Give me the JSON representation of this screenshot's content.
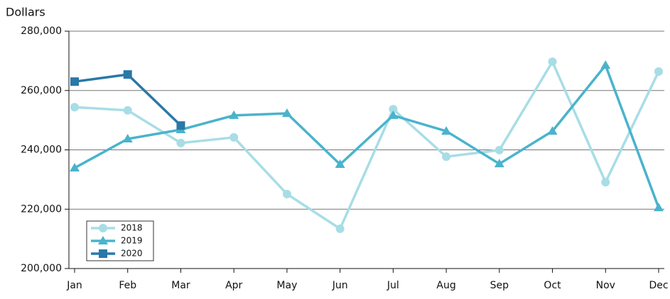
{
  "chart_data": {
    "type": "line",
    "y_label": "Dollars",
    "categories": [
      "Jan",
      "Feb",
      "Mar",
      "Apr",
      "May",
      "Jun",
      "Jul",
      "Aug",
      "Sep",
      "Oct",
      "Nov",
      "Dec"
    ],
    "series": [
      {
        "name": "2018",
        "color": "#a8dde6",
        "marker": "circle",
        "values": [
          254400,
          253300,
          242300,
          244200,
          225100,
          213400,
          253700,
          237700,
          239900,
          269700,
          229100,
          266400
        ]
      },
      {
        "name": "2019",
        "color": "#4ab3cc",
        "marker": "triangle",
        "values": [
          233900,
          243700,
          246800,
          251600,
          252300,
          235100,
          251600,
          246300,
          235300,
          246300,
          268500,
          220500
        ]
      },
      {
        "name": "2020",
        "color": "#2a78a8",
        "marker": "square",
        "values": [
          263000,
          265400,
          248200,
          null,
          null,
          null,
          null,
          null,
          null,
          null,
          null,
          null
        ]
      }
    ],
    "ylim": [
      200000,
      280000
    ],
    "yticks": [
      {
        "value": 200000,
        "label": "200,000"
      },
      {
        "value": 220000,
        "label": "220,000"
      },
      {
        "value": 240000,
        "label": "240,000"
      },
      {
        "value": 260000,
        "label": "260,000"
      },
      {
        "value": 280000,
        "label": "280,000"
      }
    ],
    "grid": true,
    "legend": "bottom-left"
  }
}
